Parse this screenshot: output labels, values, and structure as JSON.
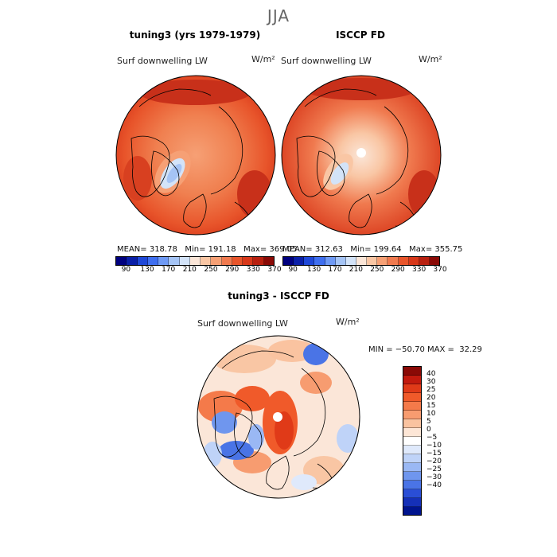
{
  "season": "JJA",
  "panel_model": {
    "title": "tuning3 (yrs 1979-1979)",
    "variable": "Surf downwelling LW",
    "units": "W/m²",
    "stats": "MEAN= 318.78   Min= 191.18   Max= 369.05"
  },
  "panel_obs": {
    "title": "ISCCP FD",
    "variable": "Surf downwelling LW",
    "units": "W/m²",
    "stats": "MEAN= 312.63   Min= 199.64   Max= 355.75"
  },
  "panel_diff": {
    "title": "tuning3 - ISCCP FD",
    "variable": "Surf downwelling LW",
    "units": "W/m²",
    "stats": "MIN = −50.70 MAX =  32.29"
  },
  "colorbar_abs": {
    "colors": [
      "#00007f",
      "#0a1fa8",
      "#1f48d8",
      "#3f6ff0",
      "#6f9af5",
      "#a5c4f5",
      "#d3e3f8",
      "#fbe6d8",
      "#f9c6a4",
      "#f6a075",
      "#f07a4f",
      "#e8552b",
      "#d8381a",
      "#b8200f",
      "#8a0a06"
    ],
    "ticks": [
      "90",
      "130",
      "170",
      "210",
      "250",
      "290",
      "330",
      "370"
    ]
  },
  "colorbar_diff": {
    "colors": [
      "#8a0a06",
      "#c21a0e",
      "#e03a18",
      "#f05a2a",
      "#f47a4a",
      "#f79c70",
      "#fac3a0",
      "#fde6d6",
      "#ffffff",
      "#dfe9fb",
      "#bfd3f8",
      "#9ab8f4",
      "#6f96ee",
      "#4a74e6",
      "#2a4ed6",
      "#1530b8",
      "#00148e"
    ],
    "labels": [
      "40",
      "30",
      "25",
      "20",
      "15",
      "10",
      "5",
      "0",
      "−5",
      "−10",
      "−15",
      "−20",
      "−25",
      "−30",
      "−40"
    ]
  }
}
